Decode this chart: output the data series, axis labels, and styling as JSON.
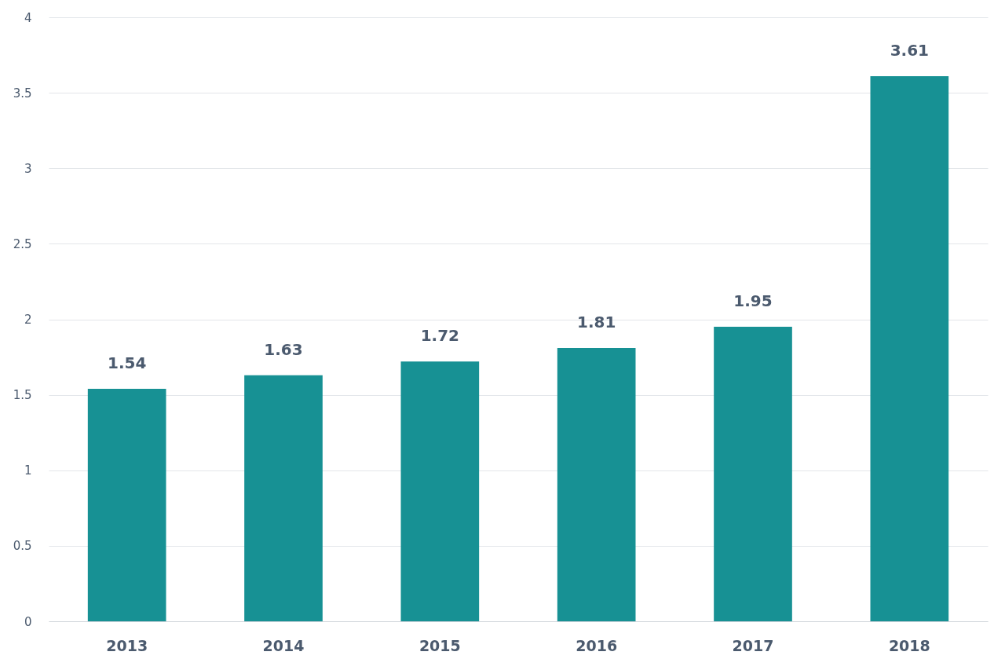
{
  "chart_data": {
    "type": "bar",
    "categories": [
      "2013",
      "2014",
      "2015",
      "2016",
      "2017",
      "2018"
    ],
    "values": [
      1.54,
      1.63,
      1.72,
      1.81,
      1.95,
      3.61
    ],
    "color": "#179194",
    "ylim": [
      0,
      4
    ],
    "yticks": [
      0,
      0.5,
      1,
      1.5,
      2,
      2.5,
      3,
      3.5,
      4
    ],
    "grid": "y",
    "data_labels": true
  }
}
